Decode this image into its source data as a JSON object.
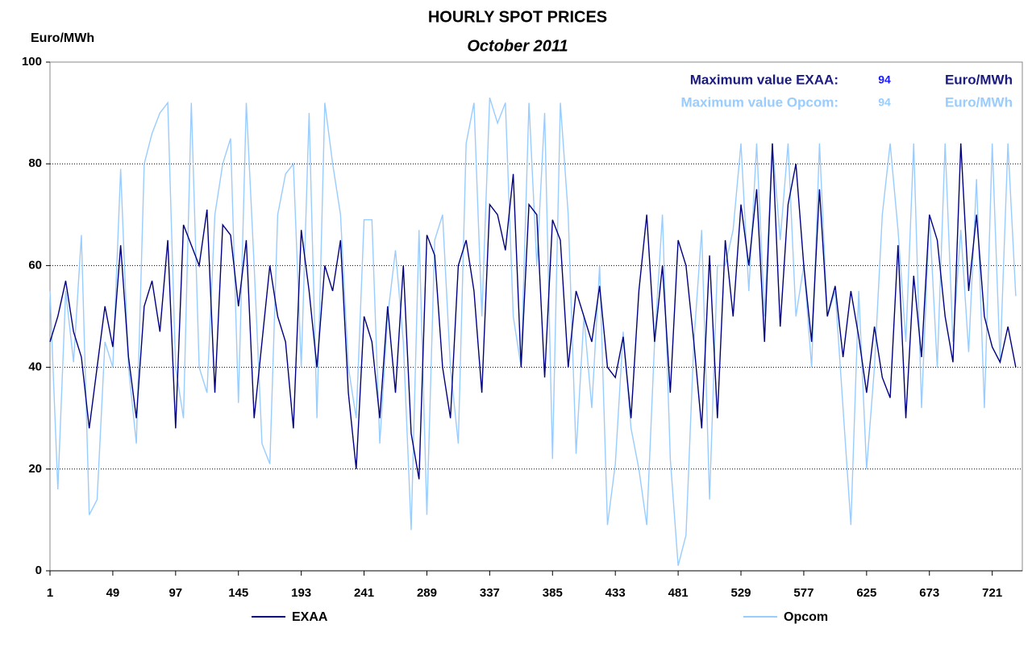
{
  "chart_data": {
    "type": "line",
    "title": "HOURLY SPOT PRICES",
    "subtitle": "October  2011",
    "y_label": "Euro/MWh",
    "x": [
      1,
      7,
      13,
      19,
      25,
      31,
      37,
      43,
      49,
      55,
      61,
      67,
      73,
      79,
      85,
      91,
      97,
      103,
      109,
      115,
      121,
      127,
      133,
      139,
      145,
      151,
      157,
      163,
      169,
      175,
      181,
      187,
      193,
      199,
      205,
      211,
      217,
      223,
      229,
      235,
      241,
      247,
      253,
      259,
      265,
      271,
      277,
      283,
      289,
      295,
      301,
      307,
      313,
      319,
      325,
      331,
      337,
      343,
      349,
      355,
      361,
      367,
      373,
      379,
      385,
      391,
      397,
      403,
      409,
      415,
      421,
      427,
      433,
      439,
      445,
      451,
      457,
      463,
      469,
      475,
      481,
      487,
      493,
      499,
      505,
      511,
      517,
      523,
      529,
      535,
      541,
      547,
      553,
      559,
      565,
      571,
      577,
      583,
      589,
      595,
      601,
      607,
      613,
      619,
      625,
      631,
      637,
      643,
      649,
      655,
      661,
      667,
      673,
      679,
      685,
      691,
      697,
      703,
      709,
      715,
      721,
      727,
      733,
      739
    ],
    "series": [
      {
        "name": "EXAA",
        "color": "#000080",
        "values": [
          45,
          50,
          57,
          47,
          42,
          28,
          40,
          52,
          44,
          64,
          42,
          30,
          52,
          57,
          47,
          65,
          28,
          68,
          64,
          60,
          71,
          35,
          68,
          66,
          52,
          65,
          30,
          45,
          60,
          50,
          45,
          28,
          67,
          55,
          40,
          60,
          55,
          65,
          35,
          20,
          50,
          45,
          30,
          52,
          35,
          60,
          27,
          18,
          66,
          62,
          40,
          30,
          60,
          65,
          55,
          35,
          72,
          70,
          63,
          78,
          40,
          72,
          70,
          38,
          69,
          65,
          40,
          55,
          50,
          45,
          56,
          40,
          38,
          46,
          30,
          55,
          70,
          45,
          60,
          35,
          65,
          60,
          45,
          28,
          62,
          30,
          65,
          50,
          72,
          60,
          75,
          45,
          84,
          48,
          72,
          80,
          60,
          45,
          75,
          50,
          56,
          42,
          55,
          46,
          35,
          48,
          38,
          34,
          64,
          30,
          58,
          42,
          70,
          65,
          50,
          41,
          84,
          55,
          70,
          50,
          44,
          41,
          48,
          40
        ]
      },
      {
        "name": "Opcom",
        "color": "#99ccff",
        "values": [
          55,
          16,
          55,
          41,
          66,
          11,
          14,
          45,
          40,
          79,
          40,
          25,
          80,
          86,
          90,
          92,
          40,
          30,
          92,
          40,
          35,
          70,
          80,
          85,
          33,
          92,
          60,
          25,
          21,
          70,
          78,
          80,
          40,
          90,
          30,
          92,
          80,
          70,
          40,
          30,
          69,
          69,
          25,
          50,
          63,
          45,
          8,
          67,
          11,
          65,
          70,
          40,
          25,
          84,
          92,
          50,
          93,
          88,
          92,
          50,
          40,
          92,
          60,
          90,
          22,
          92,
          70,
          23,
          50,
          32,
          60,
          9,
          21,
          47,
          28,
          20,
          9,
          45,
          70,
          22,
          1,
          7,
          45,
          67,
          14,
          60,
          60,
          67,
          84,
          55,
          84,
          50,
          84,
          65,
          84,
          50,
          60,
          40,
          84,
          50,
          55,
          32,
          9,
          55,
          20,
          40,
          70,
          84,
          67,
          45,
          84,
          32,
          70,
          40,
          84,
          45,
          67,
          43,
          77,
          32,
          84,
          41,
          84,
          54
        ]
      }
    ],
    "xlim": [
      1,
      744
    ],
    "xticks": [
      1,
      49,
      97,
      145,
      193,
      241,
      289,
      337,
      385,
      433,
      481,
      529,
      577,
      625,
      673,
      721
    ],
    "ylim": [
      0,
      100
    ],
    "yticks": [
      0,
      20,
      40,
      60,
      80,
      100
    ],
    "grid": true,
    "annotations": [
      {
        "label": "Maximum value EXAA:",
        "value": 94,
        "unit": "Euro/MWh",
        "color": "#1a1a80",
        "value_color": "#1a1aff"
      },
      {
        "label": "Maximum value Opcom:",
        "value": 94,
        "unit": "Euro/MWh",
        "color": "#99ccff",
        "value_color": "#99ccff"
      }
    ]
  }
}
